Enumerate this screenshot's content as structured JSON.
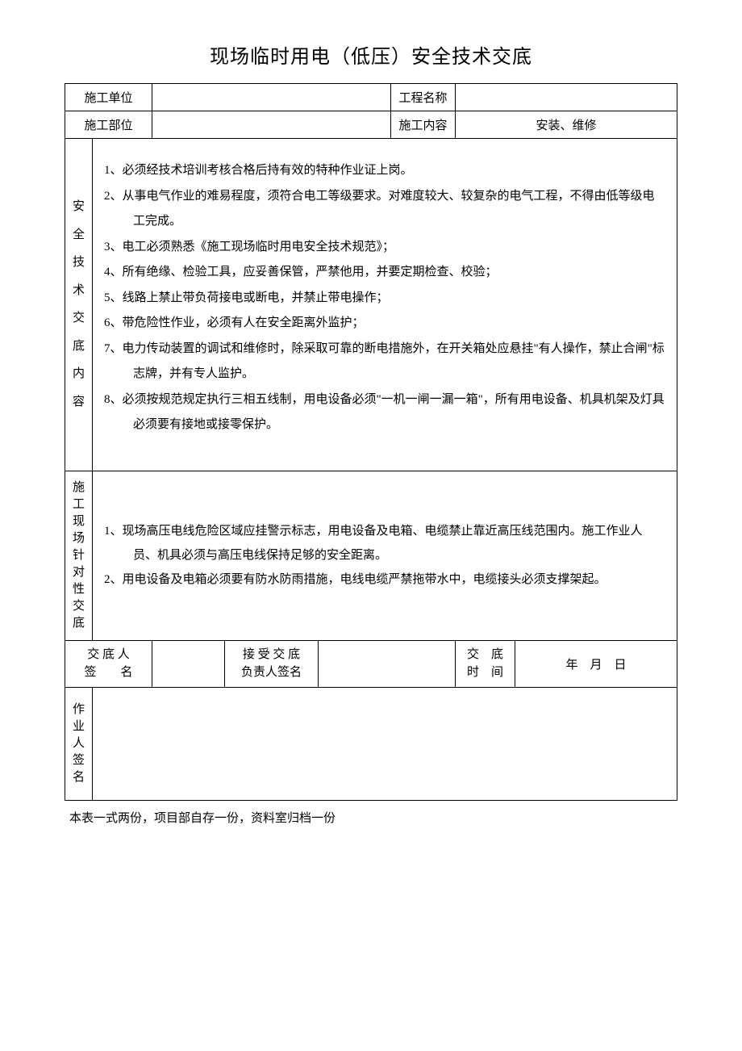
{
  "title": "现场临时用电（低压）安全技术交底",
  "header": {
    "row1": {
      "label1": "施工单位",
      "value1": "",
      "label2": "工程名称",
      "value2": ""
    },
    "row2": {
      "label1": "施工部位",
      "value1": "",
      "label2": "施工内容",
      "value2": "安装、维修"
    }
  },
  "section1": {
    "label": "安\n全\n技\n术\n交\n底\n内\n容",
    "items": [
      "1、必须经技术培训考核合格后持有效的特种作业证上岗。",
      "2、从事电气作业的难易程度，须符合电工等级要求。对难度较大、较复杂的电气工程，不得由低等级电工完成。",
      "3、电工必须熟悉《施工现场临时用电安全技术规范》；",
      "4、所有绝缘、检验工具，应妥善保管，严禁他用，并要定期检查、校验；",
      "5、线路上禁止带负荷接电或断电，并禁止带电操作；",
      "6、带危险性作业，必须有人在安全距离外监护；",
      "7、电力传动装置的调试和维修时，除采取可靠的断电措施外，在开关箱处应悬挂\"有人操作，禁止合闸\"标志牌，并有专人监护。",
      "8、必须按规范规定执行三相五线制，用电设备必须\"一机一闸一漏一箱\"，所有用电设备、机具机架及灯具必须要有接地或接零保护。"
    ]
  },
  "section2": {
    "label": "施\n工\n现\n场\n针\n对\n性\n交\n底",
    "items": [
      "1、现场高压电线危险区域应挂警示标志，用电设备及电箱、电缆禁止靠近高压线范围内。施工作业人员、机具必须与高压电线保持足够的安全距离。",
      "2、用电设备及电箱必须要有防水防雨措施，电线电缆严禁拖带水中，电缆接头必须支撑架起。"
    ]
  },
  "signatures": {
    "col1_label_line1": "交 底 人",
    "col1_label_line2": "签　　名",
    "col1_value": "",
    "col2_label_line1": "接 受 交 底",
    "col2_label_line2": "负责人签名",
    "col2_value": "",
    "col3_label_line1": "交　底",
    "col3_label_line2": "时　间",
    "col3_value": "年　月　日"
  },
  "worker_sig_label": "作\n业\n人\n签\n名",
  "footnote": "本表一式两份，项目部自存一份，资料室归档一份",
  "colors": {
    "text": "#000000",
    "background": "#ffffff",
    "border": "#000000"
  },
  "typography": {
    "title_fontsize": 24,
    "body_fontsize": 15,
    "font_family": "SimSun"
  }
}
